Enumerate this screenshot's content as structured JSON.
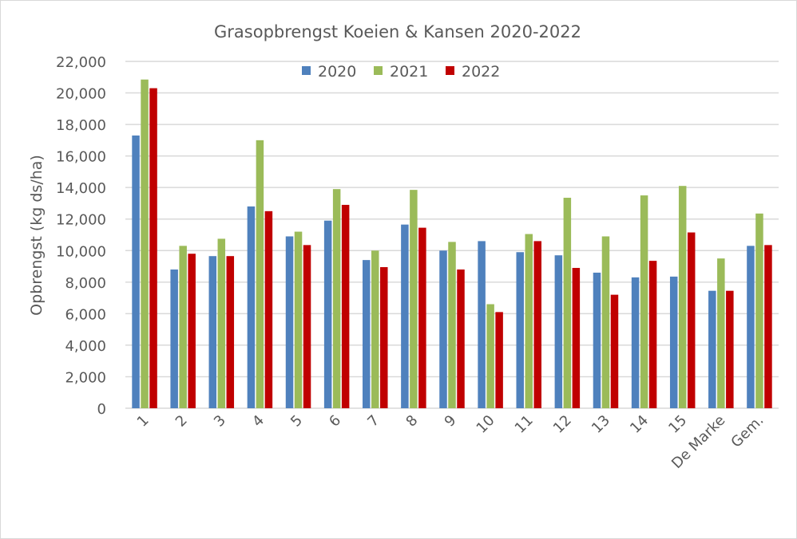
{
  "chart_data": {
    "type": "bar",
    "title": "Grasopbrengst Koeien & Kansen 2020-2022",
    "xlabel": "",
    "ylabel": "Opbrengst (kg ds/ha)",
    "ylim": [
      0,
      22000
    ],
    "ytick_step": 2000,
    "yticks": [
      "0",
      "2,000",
      "4,000",
      "6,000",
      "8,000",
      "10,000",
      "12,000",
      "14,000",
      "16,000",
      "18,000",
      "20,000",
      "22,000"
    ],
    "grid": true,
    "legend_position": "top",
    "categories": [
      "1",
      "2",
      "3",
      "4",
      "5",
      "6",
      "7",
      "8",
      "9",
      "10",
      "11",
      "12",
      "13",
      "14",
      "15",
      "De Marke",
      "Gem."
    ],
    "series": [
      {
        "name": "2020",
        "color": "#4f81bd",
        "values": [
          17300,
          8800,
          9650,
          12800,
          10900,
          11900,
          9400,
          11650,
          10000,
          10600,
          9900,
          9700,
          8600,
          8300,
          8350,
          7450,
          10300
        ]
      },
      {
        "name": "2021",
        "color": "#9bbb59",
        "values": [
          20850,
          10300,
          10750,
          17000,
          11200,
          13900,
          10000,
          13850,
          10550,
          6600,
          11050,
          13350,
          10900,
          13500,
          14100,
          9500,
          12350
        ]
      },
      {
        "name": "2022",
        "color": "#c00000",
        "values": [
          20300,
          9800,
          9650,
          12500,
          10350,
          12900,
          8950,
          11450,
          8800,
          6100,
          10600,
          8900,
          7200,
          9350,
          11150,
          7450,
          10350
        ]
      }
    ]
  }
}
